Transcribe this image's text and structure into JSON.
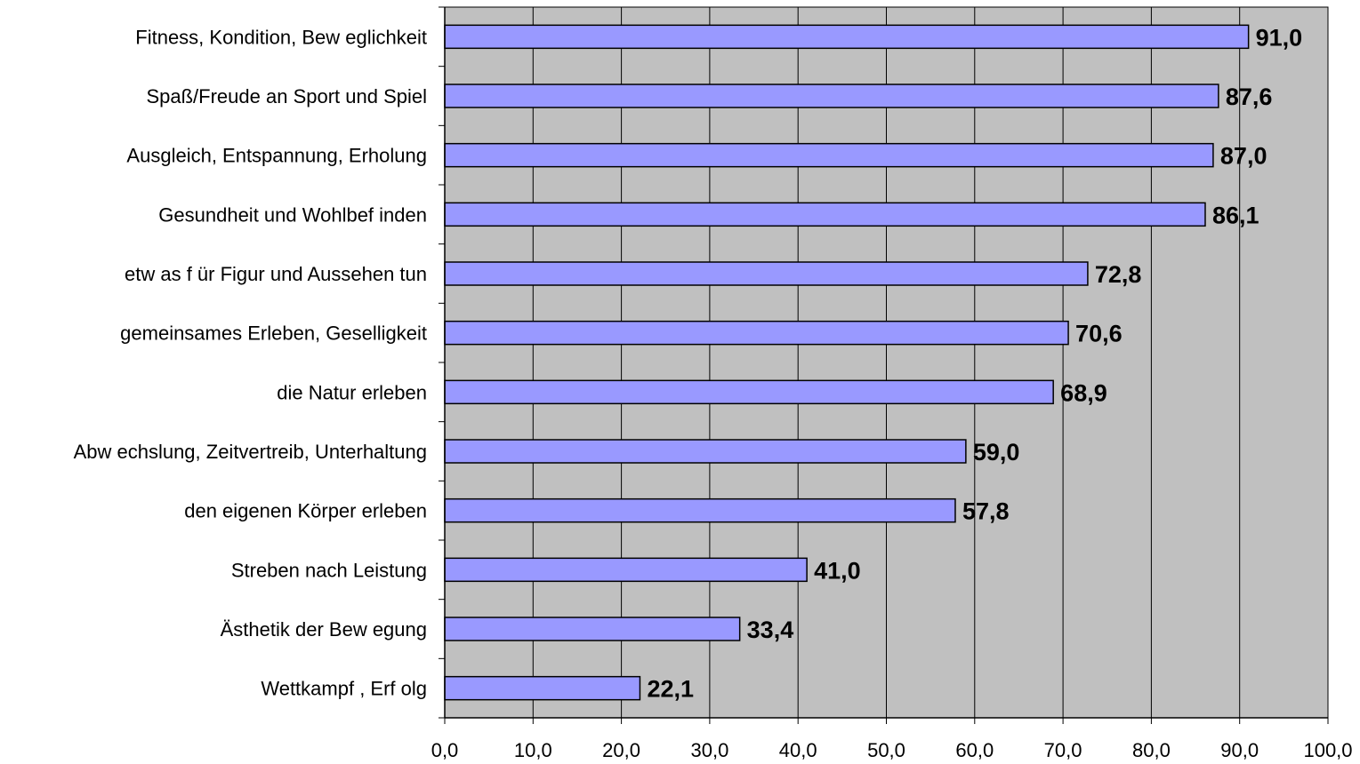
{
  "chart_data": {
    "type": "bar",
    "orientation": "horizontal",
    "categories": [
      "Fitness, Kondition, Bew eglichkeit",
      "Spaß/Freude an Sport und Spiel",
      "Ausgleich, Entspannung, Erholung",
      "Gesundheit und Wohlbef inden",
      "etw as f ür Figur und Aussehen tun",
      "gemeinsames Erleben, Geselligkeit",
      "die Natur erleben",
      "Abw echslung, Zeitvertreib, Unterhaltung",
      "den eigenen Körper erleben",
      "Streben nach Leistung",
      "Ästhetik der Bew egung",
      "Wettkampf , Erf olg"
    ],
    "values": [
      91.0,
      87.6,
      87.0,
      86.1,
      72.8,
      70.6,
      68.9,
      59.0,
      57.8,
      41.0,
      33.4,
      22.1
    ],
    "value_labels": [
      "91,0",
      "87,6",
      "87,0",
      "86,1",
      "72,8",
      "70,6",
      "68,9",
      "59,0",
      "57,8",
      "41,0",
      "33,4",
      "22,1"
    ],
    "xticks": [
      "0,0",
      "10,0",
      "20,0",
      "30,0",
      "40,0",
      "50,0",
      "60,0",
      "70,0",
      "80,0",
      "90,0",
      "100,0"
    ],
    "xlim": [
      0,
      100
    ],
    "grid": true,
    "legend": "none",
    "colors": {
      "bar_fill": "#9999ff",
      "bar_stroke": "#000000",
      "plot_background": "#c0c0c0",
      "gridline": "#000000"
    }
  }
}
